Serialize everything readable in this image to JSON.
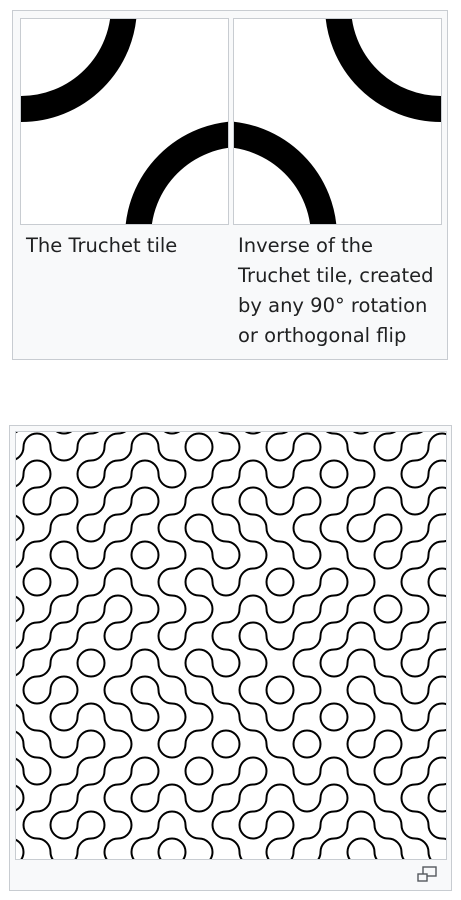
{
  "gallery": {
    "items": [
      {
        "caption": "The Truchet tile"
      },
      {
        "caption": "Inverse of the Truchet tile, created by any 90° rotation or orthogonal flip"
      }
    ]
  },
  "figure": {
    "enlarge_icon": "enlarge-icon"
  },
  "colors": {
    "arc": "#000000",
    "panel_bg": "#f8f9fa",
    "border": "#c8ccd1",
    "text": "#202122"
  }
}
